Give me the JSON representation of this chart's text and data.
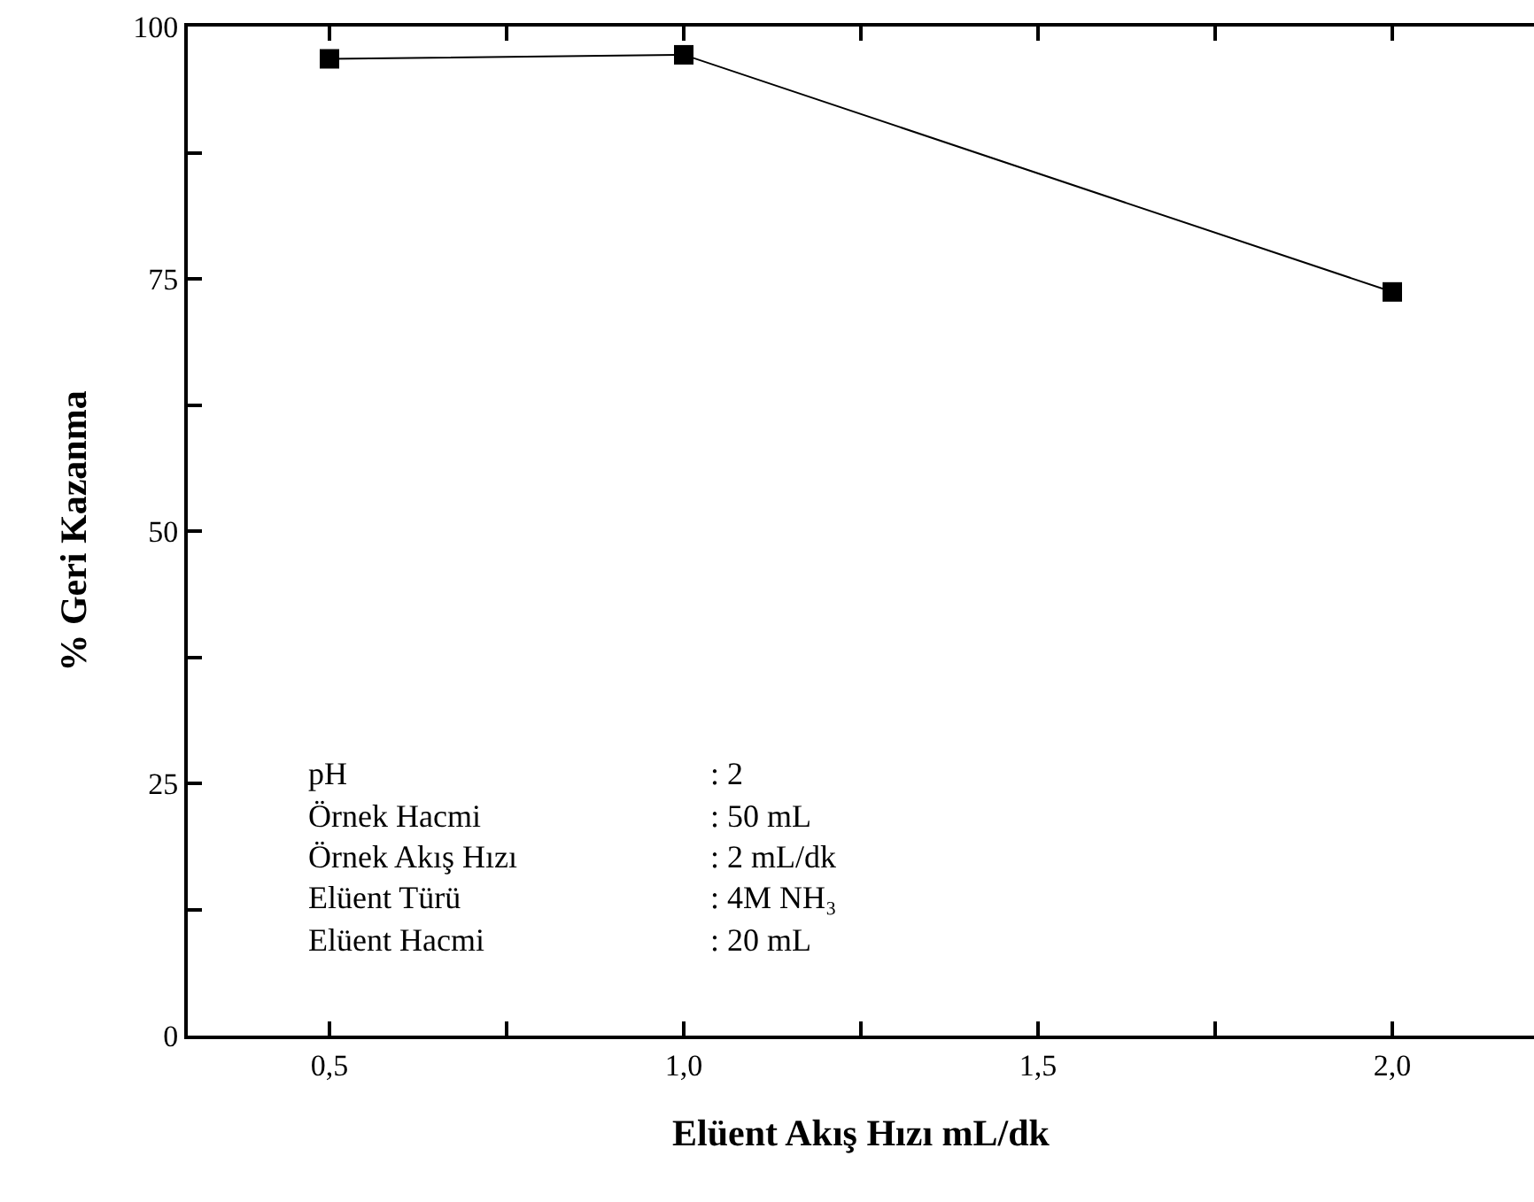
{
  "chart_data": {
    "type": "line",
    "xlabel": "Elüent Akış Hızı mL/dk",
    "ylabel": "% Geri Kazanma",
    "x": [
      0.5,
      1.0,
      2.0
    ],
    "series": [
      {
        "color": "#000000",
        "values": [
          96.8,
          97.2,
          73.7
        ]
      }
    ],
    "xlim": [
      0.3,
      2.2
    ],
    "ylim": [
      0,
      100
    ],
    "xticks": [
      {
        "value": 0.5,
        "label": "0,5"
      },
      {
        "value": 0.75,
        "label": null
      },
      {
        "value": 1.0,
        "label": "1,0"
      },
      {
        "value": 1.25,
        "label": null
      },
      {
        "value": 1.5,
        "label": "1,5"
      },
      {
        "value": 1.75,
        "label": null
      },
      {
        "value": 2.0,
        "label": "2,0"
      }
    ],
    "yticks": [
      0,
      {
        "value": 12.5,
        "label": null
      },
      25,
      {
        "value": 37.5,
        "label": null
      },
      50,
      {
        "value": 62.5,
        "label": null
      },
      75,
      {
        "value": 87.5,
        "label": null
      },
      100
    ],
    "marker": "square",
    "line_style": "solid",
    "grid": false,
    "annotations": [
      "pH",
      ": 2",
      "Örnek Hacmi",
      ": 50 mL",
      "Örnek Akış Hızı",
      ": 2 mL/dk",
      "Elüent Türü",
      ": 4M NH₃",
      "Elüent Hacmi",
      ": 20 mL"
    ]
  }
}
